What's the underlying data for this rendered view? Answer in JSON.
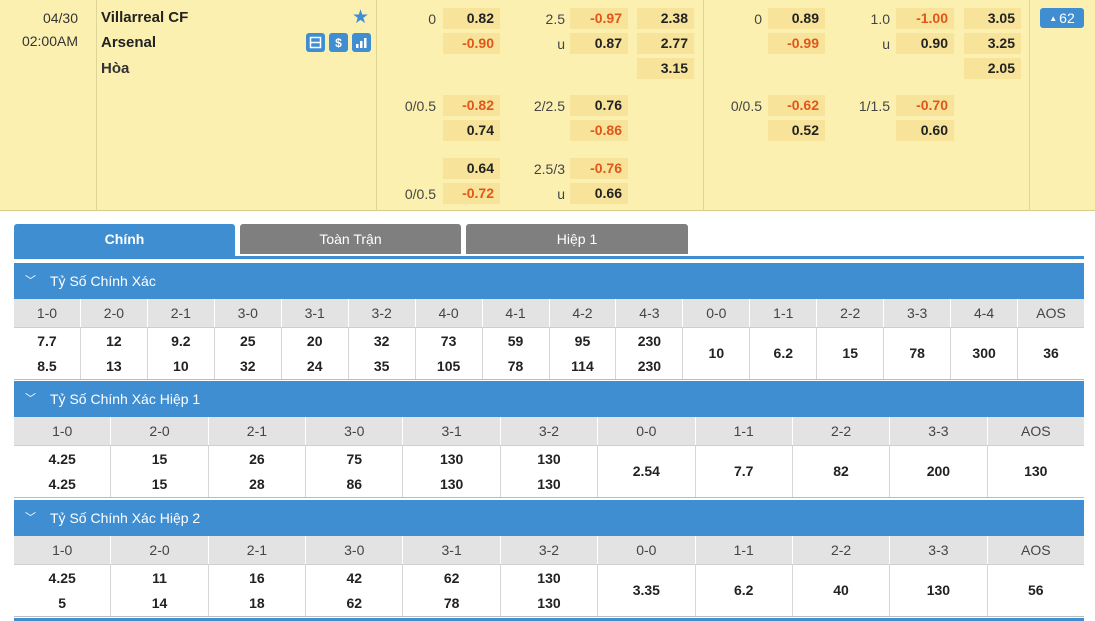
{
  "match": {
    "date": "04/30",
    "time": "02:00AM",
    "home": "Villarreal CF",
    "away": "Arsenal",
    "draw_label": "Hòa",
    "more_count": "62",
    "icons": [
      "star-icon",
      "lineup-icon",
      "dollar-icon",
      "stats-icon"
    ],
    "full_time": {
      "main": {
        "hdp_line": "0",
        "hdp_home": "0.82",
        "hdp_away": "-0.90",
        "ou_line": "2.5",
        "ou_over": "-0.97",
        "ou_under_label": "u",
        "ou_under": "0.87",
        "x12_home": "2.38",
        "x12_away": "2.77",
        "x12_draw": "3.15"
      },
      "alt1": {
        "hdp_line": "0/0.5",
        "hdp_home": "-0.82",
        "hdp_away": "0.74",
        "ou_line": "2/2.5",
        "ou_over": "0.76",
        "ou_under": "-0.86"
      },
      "alt2": {
        "hdp_line": "0/0.5",
        "hdp_home": "0.64",
        "hdp_away": "-0.72",
        "ou_line": "2.5/3",
        "ou_over": "-0.76",
        "ou_under_label": "u",
        "ou_under": "0.66"
      }
    },
    "first_half": {
      "main": {
        "hdp_line": "0",
        "hdp_home": "0.89",
        "hdp_away": "-0.99",
        "ou_line": "1.0",
        "ou_over": "-1.00",
        "ou_under_label": "u",
        "ou_under": "0.90",
        "x12_home": "3.05",
        "x12_away": "3.25",
        "x12_draw": "2.05"
      },
      "alt1": {
        "hdp_line": "0/0.5",
        "hdp_home": "-0.62",
        "hdp_away": "0.52",
        "ou_line": "1/1.5",
        "ou_over": "-0.70",
        "ou_under": "0.60"
      }
    }
  },
  "tabs": [
    {
      "label": "Chính"
    },
    {
      "label": "Toàn Trận"
    },
    {
      "label": "Hiệp 1"
    }
  ],
  "sections": [
    {
      "title": "Tỷ Số Chính Xác",
      "columns": [
        "1-0",
        "2-0",
        "2-1",
        "3-0",
        "3-1",
        "3-2",
        "4-0",
        "4-1",
        "4-2",
        "4-3",
        "0-0",
        "1-1",
        "2-2",
        "3-3",
        "4-4",
        "AOS"
      ],
      "values": [
        [
          "7.7",
          "8.5"
        ],
        [
          "12",
          "13"
        ],
        [
          "9.2",
          "10"
        ],
        [
          "25",
          "32"
        ],
        [
          "20",
          "24"
        ],
        [
          "32",
          "35"
        ],
        [
          "73",
          "105"
        ],
        [
          "59",
          "78"
        ],
        [
          "95",
          "114"
        ],
        [
          "230",
          "230"
        ],
        [
          "10"
        ],
        [
          "6.2"
        ],
        [
          "15"
        ],
        [
          "78"
        ],
        [
          "300"
        ],
        [
          "36"
        ]
      ]
    },
    {
      "title": "Tỷ Số Chính Xác Hiệp 1",
      "columns": [
        "1-0",
        "2-0",
        "2-1",
        "3-0",
        "3-1",
        "3-2",
        "0-0",
        "1-1",
        "2-2",
        "3-3",
        "AOS"
      ],
      "values": [
        [
          "4.25",
          "4.25"
        ],
        [
          "15",
          "15"
        ],
        [
          "26",
          "28"
        ],
        [
          "75",
          "86"
        ],
        [
          "130",
          "130"
        ],
        [
          "130",
          "130"
        ],
        [
          "2.54"
        ],
        [
          "7.7"
        ],
        [
          "82"
        ],
        [
          "200"
        ],
        [
          "130"
        ]
      ]
    },
    {
      "title": "Tỷ Số Chính Xác Hiệp 2",
      "columns": [
        "1-0",
        "2-0",
        "2-1",
        "3-0",
        "3-1",
        "3-2",
        "0-0",
        "1-1",
        "2-2",
        "3-3",
        "AOS"
      ],
      "values": [
        [
          "4.25",
          "5"
        ],
        [
          "11",
          "14"
        ],
        [
          "16",
          "18"
        ],
        [
          "42",
          "62"
        ],
        [
          "62",
          "78"
        ],
        [
          "130",
          "130"
        ],
        [
          "3.35"
        ],
        [
          "6.2"
        ],
        [
          "40"
        ],
        [
          "130"
        ],
        [
          "56"
        ]
      ]
    }
  ],
  "colors": {
    "accent": "#3f8ed2",
    "negative": "#e0561b",
    "header_bg": "#fcf0b0",
    "odd_bg": "#f7e49a",
    "tab_inactive": "#7f7f7f"
  }
}
